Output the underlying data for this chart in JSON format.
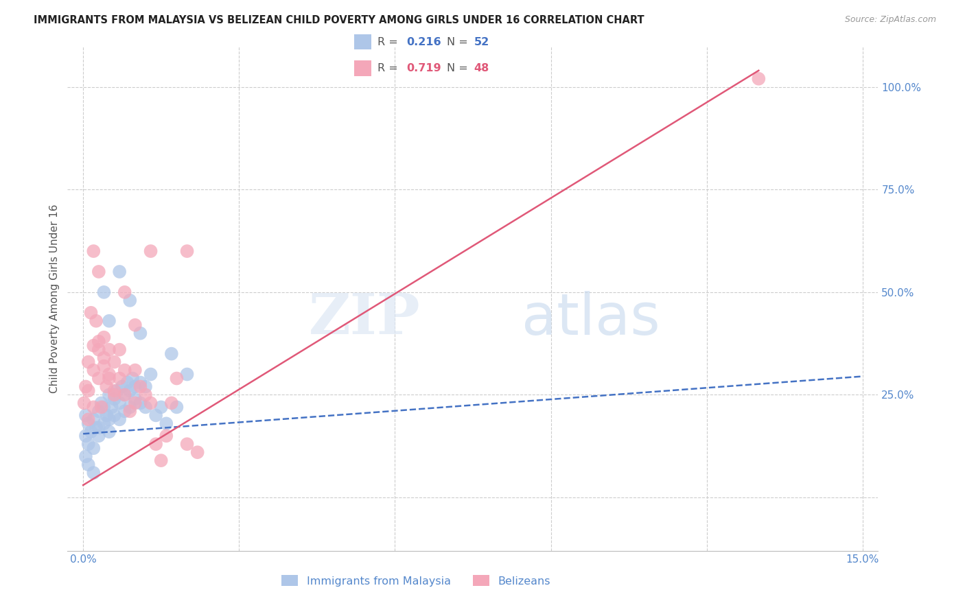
{
  "title": "IMMIGRANTS FROM MALAYSIA VS BELIZEAN CHILD POVERTY AMONG GIRLS UNDER 16 CORRELATION CHART",
  "source": "Source: ZipAtlas.com",
  "ylabel": "Child Poverty Among Girls Under 16",
  "legend_label_blue": "Immigrants from Malaysia",
  "legend_label_pink": "Belizeans",
  "x_ticks": [
    0.0,
    0.03,
    0.06,
    0.09,
    0.12,
    0.15
  ],
  "x_tick_labels": [
    "0.0%",
    "",
    "",
    "",
    "",
    "15.0%"
  ],
  "y_ticks_right": [
    0.25,
    0.5,
    0.75,
    1.0
  ],
  "y_tick_labels_right": [
    "25.0%",
    "50.0%",
    "75.0%",
    "100.0%"
  ],
  "xlim": [
    -0.003,
    0.153
  ],
  "ylim": [
    -0.13,
    1.1
  ],
  "background_color": "#ffffff",
  "grid_color": "#cccccc",
  "blue_color": "#aec6e8",
  "blue_line_color": "#4472c4",
  "pink_color": "#f4a7b9",
  "pink_line_color": "#e05878",
  "title_color": "#222222",
  "axis_color": "#5588cc",
  "watermark_zip": "ZIP",
  "watermark_atlas": "atlas",
  "blue_scatter_x": [
    0.0005,
    0.001,
    0.0015,
    0.002,
    0.0025,
    0.003,
    0.003,
    0.0035,
    0.004,
    0.004,
    0.0045,
    0.005,
    0.005,
    0.005,
    0.0055,
    0.006,
    0.006,
    0.0065,
    0.007,
    0.007,
    0.0075,
    0.008,
    0.008,
    0.0085,
    0.009,
    0.009,
    0.0095,
    0.01,
    0.01,
    0.011,
    0.011,
    0.012,
    0.012,
    0.013,
    0.014,
    0.015,
    0.016,
    0.017,
    0.018,
    0.02,
    0.0005,
    0.0005,
    0.001,
    0.001,
    0.002,
    0.002,
    0.003,
    0.004,
    0.005,
    0.007,
    0.009,
    0.011
  ],
  "blue_scatter_y": [
    0.2,
    0.18,
    0.16,
    0.19,
    0.17,
    0.21,
    0.15,
    0.23,
    0.22,
    0.18,
    0.2,
    0.25,
    0.19,
    0.16,
    0.22,
    0.24,
    0.2,
    0.26,
    0.23,
    0.19,
    0.27,
    0.25,
    0.21,
    0.28,
    0.26,
    0.22,
    0.29,
    0.27,
    0.24,
    0.28,
    0.23,
    0.27,
    0.22,
    0.3,
    0.2,
    0.22,
    0.18,
    0.35,
    0.22,
    0.3,
    0.15,
    0.1,
    0.13,
    0.08,
    0.12,
    0.06,
    0.17,
    0.5,
    0.43,
    0.55,
    0.48,
    0.4
  ],
  "pink_scatter_x": [
    0.0002,
    0.0005,
    0.001,
    0.001,
    0.0015,
    0.002,
    0.002,
    0.0025,
    0.003,
    0.003,
    0.0035,
    0.004,
    0.004,
    0.0045,
    0.005,
    0.005,
    0.006,
    0.006,
    0.007,
    0.007,
    0.008,
    0.008,
    0.009,
    0.01,
    0.01,
    0.011,
    0.012,
    0.013,
    0.014,
    0.015,
    0.016,
    0.017,
    0.018,
    0.02,
    0.022,
    0.001,
    0.002,
    0.003,
    0.004,
    0.005,
    0.006,
    0.008,
    0.01,
    0.013,
    0.02,
    0.002,
    0.003,
    0.13
  ],
  "pink_scatter_y": [
    0.23,
    0.27,
    0.19,
    0.33,
    0.45,
    0.31,
    0.37,
    0.43,
    0.29,
    0.36,
    0.22,
    0.39,
    0.32,
    0.27,
    0.36,
    0.29,
    0.33,
    0.26,
    0.36,
    0.29,
    0.31,
    0.25,
    0.21,
    0.31,
    0.23,
    0.27,
    0.25,
    0.23,
    0.13,
    0.09,
    0.15,
    0.23,
    0.29,
    0.13,
    0.11,
    0.26,
    0.22,
    0.38,
    0.34,
    0.3,
    0.25,
    0.5,
    0.42,
    0.6,
    0.6,
    0.6,
    0.55,
    1.02
  ],
  "blue_line_x": [
    0.0,
    0.15
  ],
  "blue_line_y": [
    0.155,
    0.295
  ],
  "pink_line_x": [
    0.0,
    0.13
  ],
  "pink_line_y": [
    0.03,
    1.04
  ]
}
